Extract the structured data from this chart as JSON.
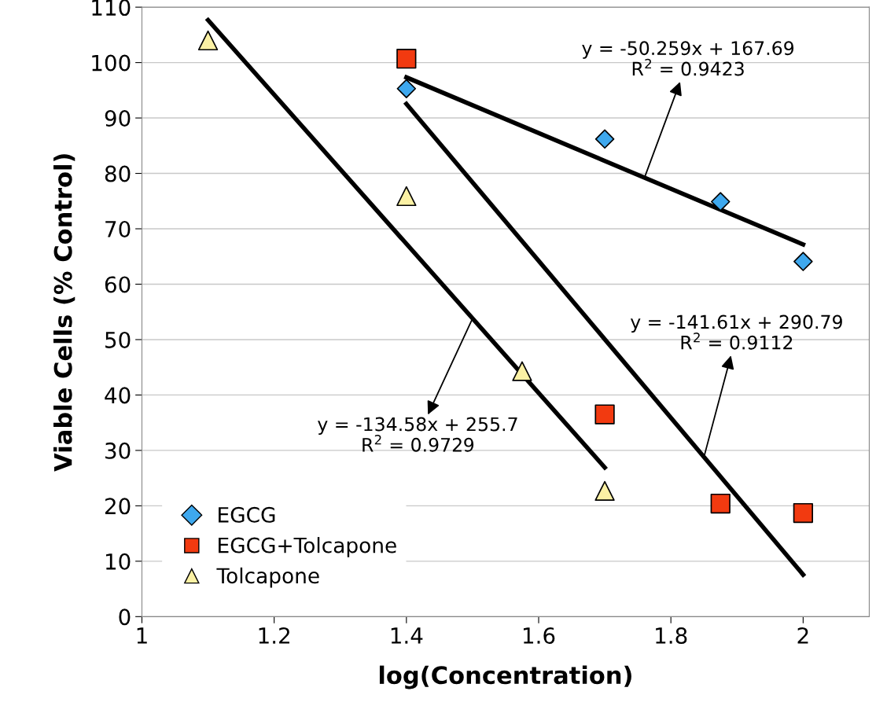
{
  "chart_data": {
    "type": "scatter",
    "xlabel": "log(Concentration)",
    "ylabel": "Viable Cells (% Control)",
    "xlim": [
      1,
      2.1
    ],
    "xticks": [
      1,
      1.2,
      1.4,
      1.6,
      1.8,
      2
    ],
    "ylim": [
      0,
      110
    ],
    "yticks": [
      0,
      10,
      20,
      30,
      40,
      50,
      60,
      70,
      80,
      90,
      100,
      110
    ],
    "grid": "y",
    "legend": "bottom left",
    "series": [
      {
        "name": "EGCG",
        "color": "#3ea8ee",
        "marker": "diamond",
        "x": [
          1.4,
          1.7,
          1.875,
          2.0
        ],
        "values": [
          95.3,
          86.2,
          74.9,
          64.1
        ]
      },
      {
        "name": "EGCG+Tolcapone",
        "color": "#f23a10",
        "marker": "square",
        "x": [
          1.4,
          1.7,
          1.875,
          2.0
        ],
        "values": [
          100.7,
          36.5,
          20.4,
          18.7
        ]
      },
      {
        "name": "Tolcapone",
        "color": "#fbf1a4",
        "marker": "triangle",
        "x": [
          1.1,
          1.4,
          1.575,
          1.7
        ],
        "values": [
          104,
          75.9,
          44.3,
          22.7
        ]
      },
      {
        "type": "line",
        "color": "#000000",
        "marker": "none",
        "x": [
          1.4,
          2.0
        ],
        "values": [
          97.33,
          67.17
        ]
      },
      {
        "type": "line",
        "color": "#000000",
        "marker": "none",
        "x": [
          1.4,
          2.0
        ],
        "values": [
          92.54,
          7.57
        ]
      },
      {
        "type": "line",
        "color": "#000000",
        "marker": "none",
        "x": [
          1.1,
          1.7
        ],
        "values": [
          107.66,
          26.91
        ]
      }
    ],
    "annotations": [
      {
        "text": "y = -50.259x + 167.69\nR$^{2}$ = 0.9423",
        "x": 1.76,
        "y": 79.2
      },
      {
        "text": "y = -134.58x + 255.7\nR$^{2}$ = 0.9729",
        "x": 1.5,
        "y": 53.8
      },
      {
        "text": "y = -141.61x + 290.79\nR$^{2}$ = 0.9112",
        "x": 1.85,
        "y": 28.8
      }
    ]
  }
}
